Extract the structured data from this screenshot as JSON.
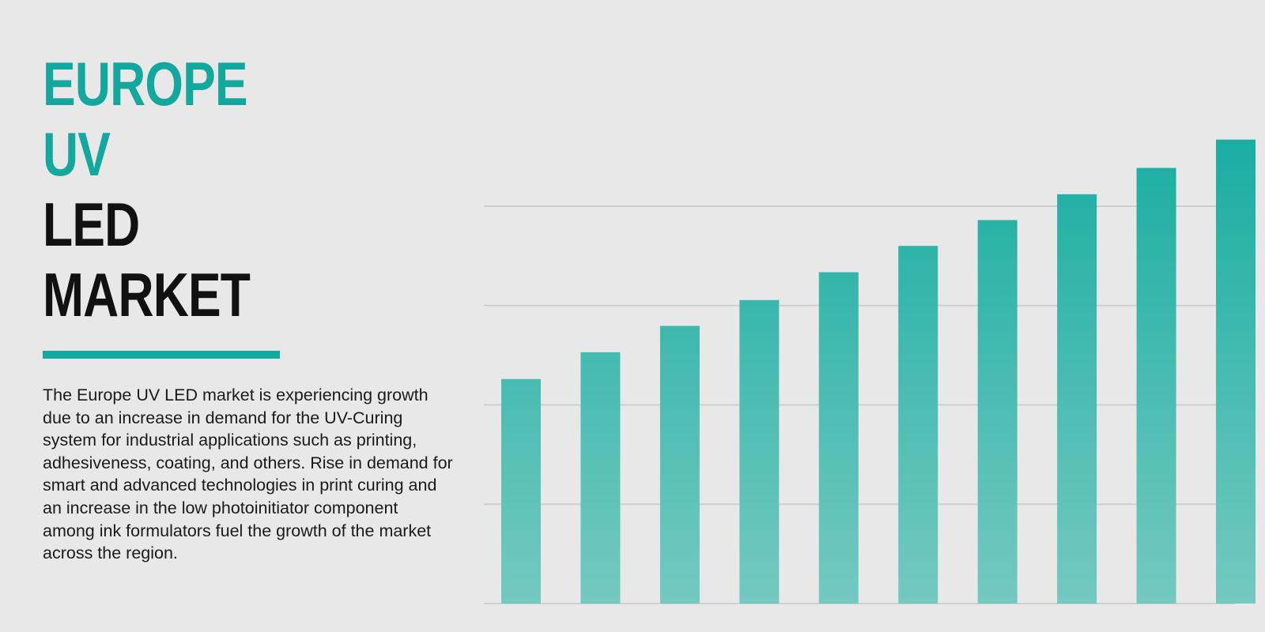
{
  "title": {
    "line1": "EUROPE",
    "line2": "UV",
    "line3": "LED",
    "line4": "MARKET"
  },
  "description": "The Europe UV LED market is experiencing growth due to an increase in demand for the UV-Curing system for industrial applications such as printing, adhesiveness, coating, and others. Rise in demand for smart and advanced technologies in print curing and an increase in the low photoinitiator component among ink formulators fuel the growth of the market across the region.",
  "colors": {
    "accent": "#13a89e",
    "text": "#111111",
    "background": "#e8e8e8",
    "bar_top": "#08a89c",
    "bar_bottom": "#74c9c0",
    "gridline": "#cfcfcf"
  },
  "chart_data": {
    "type": "bar",
    "categories": [
      "",
      "",
      "",
      "",
      "",
      "",
      "",
      "",
      "",
      ""
    ],
    "values": [
      45.2,
      50.6,
      55.9,
      61.1,
      66.7,
      72.0,
      77.2,
      82.4,
      87.7,
      93.4
    ],
    "ylim": [
      0,
      100
    ],
    "gridlines": [
      0,
      20,
      40,
      60,
      80
    ],
    "grid": true,
    "axis_labels_visible": false,
    "legend": "none"
  }
}
